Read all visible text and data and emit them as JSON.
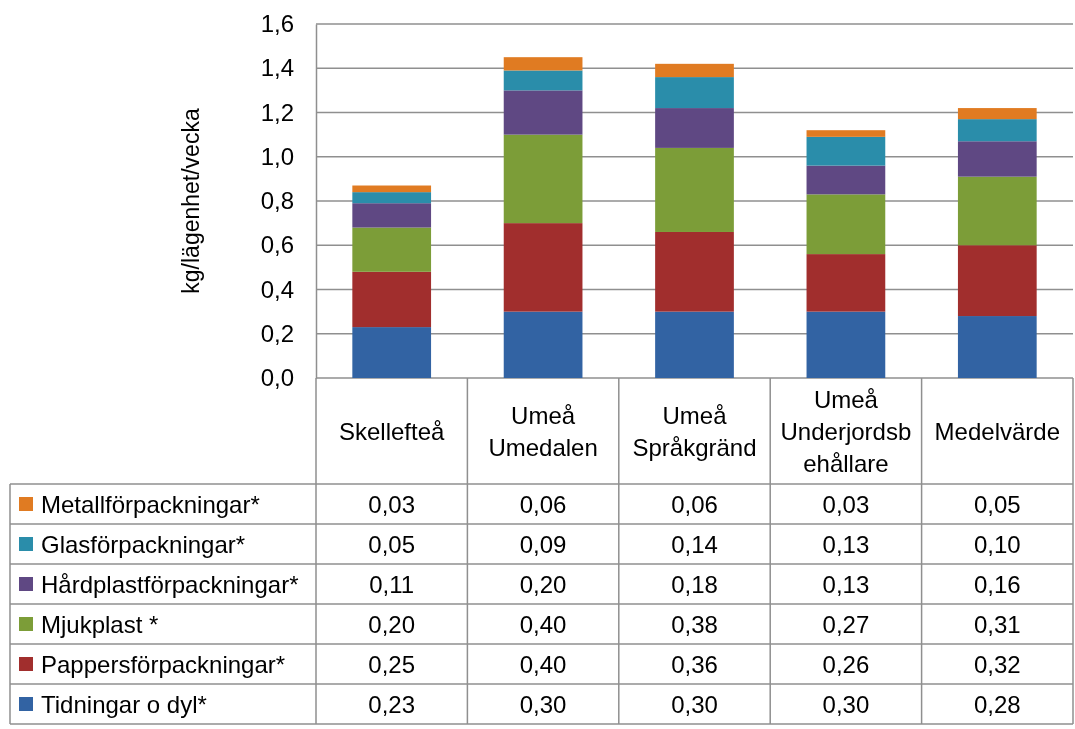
{
  "chart_data": {
    "type": "bar",
    "stacked": true,
    "ylabel": "kg/lägenhet/vecka",
    "categories": [
      "Skellefteå",
      "Umeå Umedalen",
      "Umeå Språkgränd",
      "Umeå Underjordsbehållare",
      "Medelvärde"
    ],
    "series": [
      {
        "name": "Tidningar o dyl*",
        "color": "#3263a3",
        "values": [
          0.23,
          0.3,
          0.3,
          0.3,
          0.28
        ],
        "value_labels": [
          "0,23",
          "0,30",
          "0,30",
          "0,30",
          "0,28"
        ]
      },
      {
        "name": "Pappersförpackningar*",
        "color": "#a12e2d",
        "values": [
          0.25,
          0.4,
          0.36,
          0.26,
          0.32
        ],
        "value_labels": [
          "0,25",
          "0,40",
          "0,36",
          "0,26",
          "0,32"
        ]
      },
      {
        "name": "Mjukplast *",
        "color": "#7c9d38",
        "values": [
          0.2,
          0.4,
          0.38,
          0.27,
          0.31
        ],
        "value_labels": [
          "0,20",
          "0,40",
          "0,38",
          "0,27",
          "0,31"
        ]
      },
      {
        "name": "Hårdplastförpackningar*",
        "color": "#5f4883",
        "values": [
          0.11,
          0.2,
          0.18,
          0.13,
          0.16
        ],
        "value_labels": [
          "0,11",
          "0,20",
          "0,18",
          "0,13",
          "0,16"
        ]
      },
      {
        "name": "Glasförpackningar*",
        "color": "#2a8daa",
        "values": [
          0.05,
          0.09,
          0.14,
          0.13,
          0.1
        ],
        "value_labels": [
          "0,05",
          "0,09",
          "0,14",
          "0,13",
          "0,10"
        ]
      },
      {
        "name": "Metallförpackningar*",
        "color": "#e07b22",
        "values": [
          0.03,
          0.06,
          0.06,
          0.03,
          0.05
        ],
        "value_labels": [
          "0,03",
          "0,06",
          "0,06",
          "0,03",
          "0,05"
        ]
      }
    ],
    "ylim": [
      0,
      1.6
    ],
    "yticks": [
      {
        "value": 0,
        "label": "0,0"
      },
      {
        "value": 0.2,
        "label": "0,2"
      },
      {
        "value": 0.4,
        "label": "0,4"
      },
      {
        "value": 0.6,
        "label": "0,6"
      },
      {
        "value": 0.8,
        "label": "0,8"
      },
      {
        "value": 1.0,
        "label": "1,0"
      },
      {
        "value": 1.2,
        "label": "1,2"
      },
      {
        "value": 1.4,
        "label": "1,4"
      },
      {
        "value": 1.6,
        "label": "1,6"
      }
    ],
    "grid": "y",
    "legend": "bottom"
  }
}
